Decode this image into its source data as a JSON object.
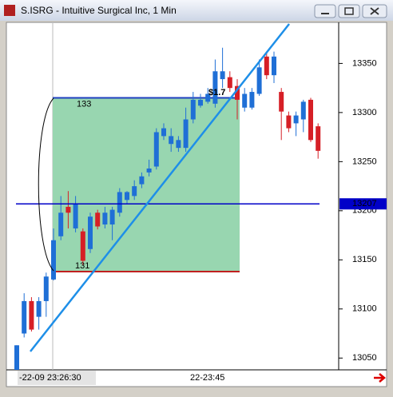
{
  "chart_data": {
    "type": "candlestick",
    "title": "S.ISRG - Intuitive Surgical Inc, 1 Min",
    "up_color": "#1f6fd6",
    "down_color": "#d61f26",
    "ylim": [
      13038,
      13391
    ],
    "yticks": [
      13050,
      13100,
      13150,
      13200,
      13250,
      13300,
      13350
    ],
    "x_labels": [
      "-22-09 23:26:30",
      "22-23:45"
    ],
    "price_line": {
      "value": 13207,
      "label": "13207"
    },
    "box": {
      "top": 13315,
      "bottom": 13138,
      "top_label": "133",
      "bottom_label": "131"
    },
    "annotation": "$1.7",
    "ohlc": [
      [
        13037,
        13063,
        13034,
        13063
      ],
      [
        13075,
        13116,
        13071,
        13108
      ],
      [
        13108,
        13112,
        13077,
        13079
      ],
      [
        13092,
        13112,
        13079,
        13108
      ],
      [
        13108,
        13137,
        13092,
        13133
      ],
      [
        13130,
        13182,
        13129,
        13170
      ],
      [
        13174,
        13215,
        13170,
        13198
      ],
      [
        13204,
        13220,
        13182,
        13198
      ],
      [
        13182,
        13215,
        13178,
        13207
      ],
      [
        13179,
        13182,
        13145,
        13149
      ],
      [
        13161,
        13198,
        13157,
        13194
      ],
      [
        13198,
        13201,
        13181,
        13184
      ],
      [
        13186,
        13204,
        13182,
        13198
      ],
      [
        13186,
        13204,
        13170,
        13201
      ],
      [
        13198,
        13223,
        13194,
        13219
      ],
      [
        13211,
        13220,
        13207,
        13219
      ],
      [
        13215,
        13231,
        13211,
        13225
      ],
      [
        13227,
        13239,
        13223,
        13235
      ],
      [
        13239,
        13252,
        13235,
        13243
      ],
      [
        13245,
        13284,
        13242,
        13280
      ],
      [
        13276,
        13289,
        13272,
        13284
      ],
      [
        13268,
        13284,
        13260,
        13276
      ],
      [
        13264,
        13276,
        13260,
        13272
      ],
      [
        13264,
        13305,
        13260,
        13293
      ],
      [
        13293,
        13321,
        13289,
        13313
      ],
      [
        13307,
        13319,
        13305,
        13313
      ],
      [
        13311,
        13325,
        13309,
        13319
      ],
      [
        13309,
        13354,
        13305,
        13342
      ],
      [
        13334,
        13366,
        13325,
        13342
      ],
      [
        13336,
        13342,
        13321,
        13325
      ],
      [
        13327,
        13334,
        13293,
        13313
      ],
      [
        13305,
        13325,
        13301,
        13319
      ],
      [
        13305,
        13325,
        13303,
        13321
      ],
      [
        13319,
        13354,
        13317,
        13346
      ],
      [
        13357,
        13362,
        13334,
        13338
      ],
      [
        13338,
        13362,
        13330,
        13357
      ],
      [
        13321,
        13325,
        13272,
        13301
      ],
      [
        13297,
        13301,
        13280,
        13284
      ],
      [
        13289,
        13301,
        13276,
        13297
      ],
      [
        13293,
        13313,
        13280,
        13311
      ],
      [
        13313,
        13315,
        13270,
        13272
      ],
      [
        13286,
        13289,
        13253,
        13261
      ]
    ]
  }
}
